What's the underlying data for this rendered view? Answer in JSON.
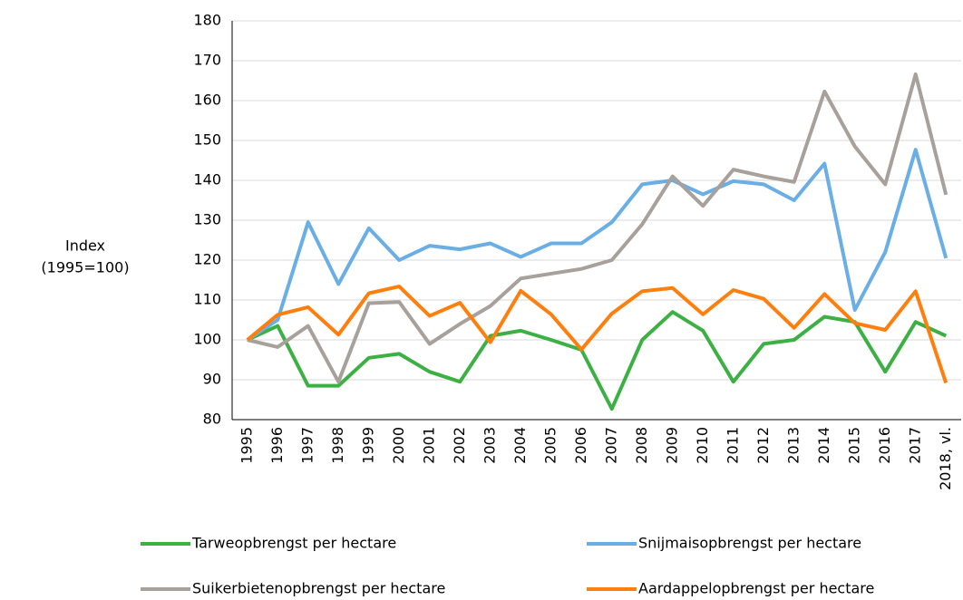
{
  "chart_data": {
    "type": "line",
    "y_label": [
      "Index",
      "(1995=100)"
    ],
    "categories": [
      "1995",
      "1996",
      "1997",
      "1998",
      "1999",
      "2000",
      "2001",
      "2002",
      "2003",
      "2004",
      "2005",
      "2006",
      "2007",
      "2008",
      "2009",
      "2010",
      "2011",
      "2012",
      "2013",
      "2014",
      "2015",
      "2016",
      "2017",
      "2018, vl."
    ],
    "ylim": [
      80,
      180
    ],
    "yticks": [
      80,
      90,
      100,
      110,
      120,
      130,
      140,
      150,
      160,
      170,
      180
    ],
    "grid": true,
    "series": [
      {
        "name": "Tarweopbrengst per hectare",
        "color": "#3cb043",
        "values": [
          100,
          103.5,
          88.5,
          88.5,
          95.5,
          96.5,
          92,
          89.5,
          101,
          102.3,
          100,
          97.5,
          82.7,
          100,
          107,
          102.3,
          89.5,
          99,
          100,
          105.8,
          104.5,
          92,
          104.5,
          101
        ]
      },
      {
        "name": "Snijmaisopbrengst per hectare",
        "color": "#6aaee6",
        "values": [
          100,
          105,
          129.5,
          114,
          128,
          120,
          123.6,
          122.7,
          124.2,
          120.8,
          124.2,
          124.2,
          129.5,
          139,
          140,
          136.5,
          139.8,
          139,
          135,
          144.2,
          107.5,
          122,
          147.7,
          120.5
        ]
      },
      {
        "name": "Suikerbietenopbrengst per hectare",
        "color": "#a8a09a",
        "values": [
          100,
          98.2,
          103.5,
          89.5,
          109.2,
          109.5,
          99,
          104,
          108.5,
          115.4,
          116.6,
          117.8,
          120,
          129,
          141,
          133.6,
          142.7,
          141,
          139.6,
          162.3,
          148.5,
          139,
          166.6,
          136.4
        ]
      },
      {
        "name": "Aardappelopbrengst per hectare",
        "color": "#ff7f0e",
        "values": [
          100,
          106.3,
          108.2,
          101.3,
          111.7,
          113.4,
          106,
          109.3,
          99.4,
          112.3,
          106.4,
          97.6,
          106.6,
          112.2,
          113,
          106.4,
          112.5,
          110.3,
          103,
          111.5,
          104.2,
          102.5,
          112.2,
          89.2
        ]
      }
    ]
  }
}
